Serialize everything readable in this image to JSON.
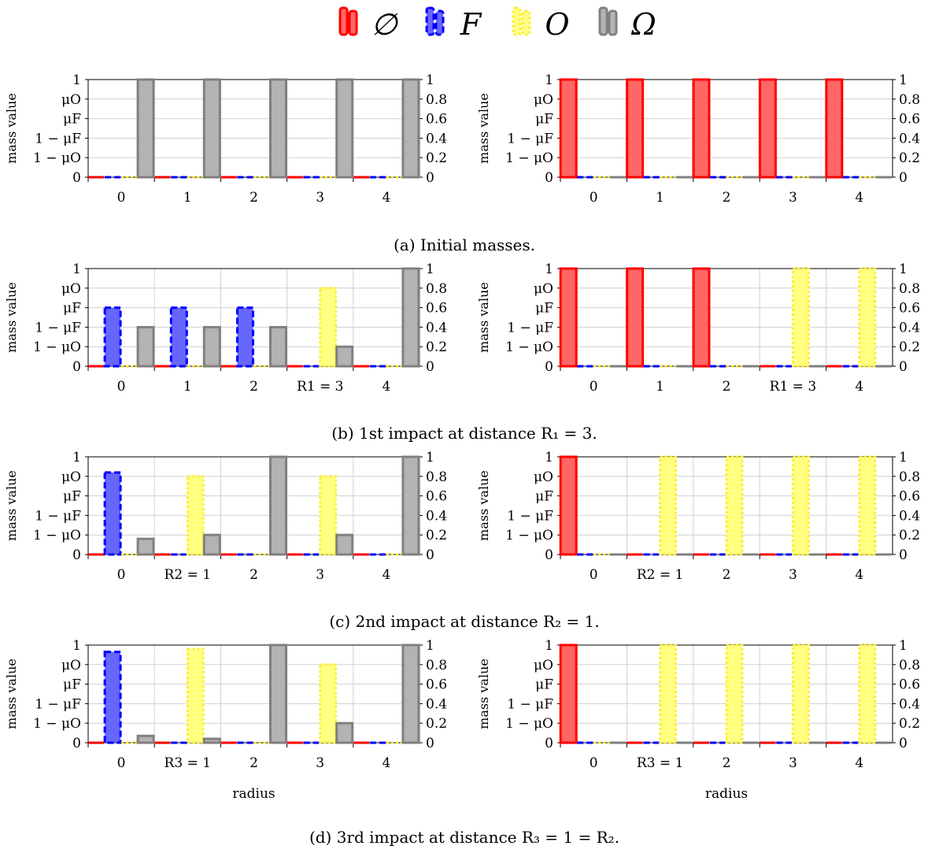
{
  "legend": [
    {
      "name": "∅",
      "color": "#ff0000",
      "dash": "solid"
    },
    {
      "name": "F",
      "color": "#0000ff",
      "dash": "dashed"
    },
    {
      "name": "O",
      "color": "#ffff00",
      "dash": "dotted"
    },
    {
      "name": "Ω",
      "color": "#808080",
      "dash": "solid"
    }
  ],
  "y_left_ticks": [
    "1",
    "μO",
    "μF",
    "1 − μF",
    "1 − μO",
    "0"
  ],
  "y_right_ticks": [
    "1",
    "0.8",
    "0.6",
    "0.4",
    "0.2",
    "0"
  ],
  "xlabel": "radius",
  "ylabel": "mass value",
  "chart_data": [
    {
      "type": "bar",
      "row": 0,
      "col": 0,
      "caption": "(a) Initial masses.",
      "categories": [
        "0",
        "1",
        "2",
        "3",
        "4"
      ],
      "series": [
        {
          "name": "∅",
          "values": [
            0,
            0,
            0,
            0,
            0
          ]
        },
        {
          "name": "F",
          "values": [
            0,
            0,
            0,
            0,
            0
          ]
        },
        {
          "name": "O",
          "values": [
            0,
            0,
            0,
            0,
            0
          ]
        },
        {
          "name": "Ω",
          "values": [
            1,
            1,
            1,
            1,
            1
          ]
        }
      ],
      "ylim": [
        0,
        1
      ]
    },
    {
      "type": "bar",
      "row": 0,
      "col": 1,
      "categories": [
        "0",
        "1",
        "2",
        "3",
        "4"
      ],
      "series": [
        {
          "name": "∅",
          "values": [
            1,
            1,
            1,
            1,
            1
          ]
        },
        {
          "name": "F",
          "values": [
            0,
            0,
            0,
            0,
            0
          ]
        },
        {
          "name": "O",
          "values": [
            0,
            0,
            0,
            0,
            0
          ]
        },
        {
          "name": "Ω",
          "values": [
            0,
            0,
            0,
            0,
            0
          ]
        }
      ],
      "ylim": [
        0,
        1
      ]
    },
    {
      "type": "bar",
      "row": 1,
      "col": 0,
      "caption": "(b) 1st impact at distance R₁ = 3.",
      "categories": [
        "0",
        "1",
        "2",
        "R1 = 3",
        "4"
      ],
      "series": [
        {
          "name": "∅",
          "values": [
            0,
            0,
            0,
            0,
            0
          ]
        },
        {
          "name": "F",
          "values": [
            0.6,
            0.6,
            0.6,
            0,
            0
          ]
        },
        {
          "name": "O",
          "values": [
            0,
            0,
            0,
            0.8,
            0
          ]
        },
        {
          "name": "Ω",
          "values": [
            0.4,
            0.4,
            0.4,
            0.2,
            1
          ]
        }
      ],
      "ylim": [
        0,
        1
      ]
    },
    {
      "type": "bar",
      "row": 1,
      "col": 1,
      "categories": [
        "0",
        "1",
        "2",
        "R1 = 3",
        "4"
      ],
      "series": [
        {
          "name": "∅",
          "values": [
            1,
            1,
            1,
            0,
            0
          ]
        },
        {
          "name": "F",
          "values": [
            0,
            0,
            0,
            0,
            0
          ]
        },
        {
          "name": "O",
          "values": [
            0,
            0,
            0,
            1,
            1
          ]
        },
        {
          "name": "Ω",
          "values": [
            0,
            0,
            0,
            0,
            0
          ]
        }
      ],
      "ylim": [
        0,
        1
      ]
    },
    {
      "type": "bar",
      "row": 2,
      "col": 0,
      "caption": "(c) 2nd impact at distance R₂ = 1.",
      "categories": [
        "0",
        "R2 = 1",
        "2",
        "3",
        "4"
      ],
      "series": [
        {
          "name": "∅",
          "values": [
            0,
            0,
            0,
            0,
            0
          ]
        },
        {
          "name": "F",
          "values": [
            0.84,
            0,
            0,
            0,
            0
          ]
        },
        {
          "name": "O",
          "values": [
            0,
            0.8,
            0,
            0.8,
            0
          ]
        },
        {
          "name": "Ω",
          "values": [
            0.16,
            0.2,
            1,
            0.2,
            1
          ]
        }
      ],
      "ylim": [
        0,
        1
      ]
    },
    {
      "type": "bar",
      "row": 2,
      "col": 1,
      "categories": [
        "0",
        "R2 = 1",
        "2",
        "3",
        "4"
      ],
      "series": [
        {
          "name": "∅",
          "values": [
            1,
            0,
            0,
            0,
            0
          ]
        },
        {
          "name": "F",
          "values": [
            0,
            0,
            0,
            0,
            0
          ]
        },
        {
          "name": "O",
          "values": [
            0,
            1,
            1,
            1,
            1
          ]
        },
        {
          "name": "Ω",
          "values": [
            0,
            0,
            0,
            0,
            0
          ]
        }
      ],
      "ylim": [
        0,
        1
      ]
    },
    {
      "type": "bar",
      "row": 3,
      "col": 0,
      "caption": "(d) 3rd impact at distance R₃ = 1 = R₂.",
      "categories": [
        "0",
        "R3 = 1",
        "2",
        "3",
        "4"
      ],
      "series": [
        {
          "name": "∅",
          "values": [
            0,
            0,
            0,
            0,
            0
          ]
        },
        {
          "name": "F",
          "values": [
            0.93,
            0,
            0,
            0,
            0
          ]
        },
        {
          "name": "O",
          "values": [
            0,
            0.96,
            0,
            0.8,
            0
          ]
        },
        {
          "name": "Ω",
          "values": [
            0.07,
            0.04,
            1,
            0.2,
            1
          ]
        }
      ],
      "ylim": [
        0,
        1
      ]
    },
    {
      "type": "bar",
      "row": 3,
      "col": 1,
      "categories": [
        "0",
        "R3 = 1",
        "2",
        "3",
        "4"
      ],
      "series": [
        {
          "name": "∅",
          "values": [
            1,
            0,
            0,
            0,
            0
          ]
        },
        {
          "name": "F",
          "values": [
            0,
            0,
            0,
            0,
            0
          ]
        },
        {
          "name": "O",
          "values": [
            0,
            1,
            1,
            1,
            1
          ]
        },
        {
          "name": "Ω",
          "values": [
            0,
            0,
            0,
            0,
            0
          ]
        }
      ],
      "ylim": [
        0,
        1
      ]
    }
  ]
}
